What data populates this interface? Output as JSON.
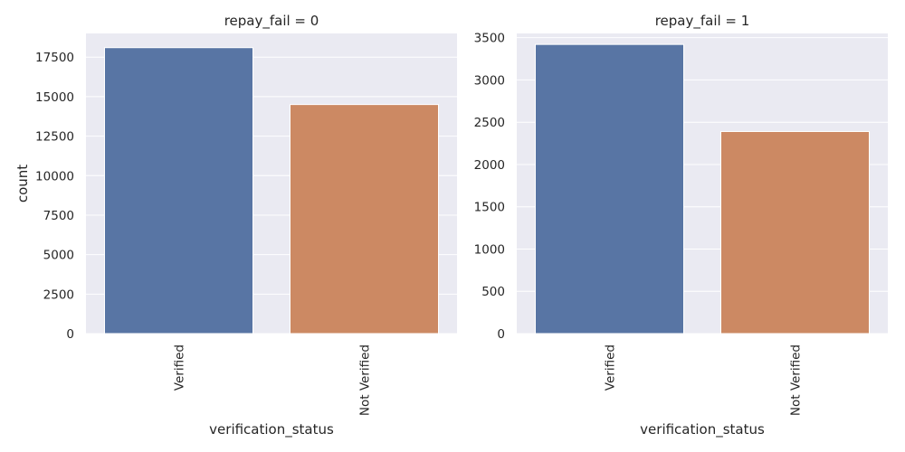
{
  "chart_data": [
    {
      "type": "bar",
      "title": "repay_fail = 0",
      "xlabel": "verification_status",
      "ylabel": "count",
      "categories": [
        "Verified",
        "Not Verified"
      ],
      "values": [
        18100,
        14500
      ],
      "colors": [
        "#5875a4",
        "#cc8963"
      ],
      "yticks": [
        "0",
        "2500",
        "5000",
        "7500",
        "10000",
        "12500",
        "15000",
        "17500"
      ],
      "ylim": [
        0,
        19000
      ],
      "grid": true
    },
    {
      "type": "bar",
      "title": "repay_fail = 1",
      "xlabel": "verification_status",
      "ylabel": "",
      "categories": [
        "Verified",
        "Not Verified"
      ],
      "values": [
        3420,
        2390
      ],
      "colors": [
        "#5875a4",
        "#cc8963"
      ],
      "yticks": [
        "0",
        "500",
        "1000",
        "1500",
        "2000",
        "2500",
        "3000",
        "3500"
      ],
      "ylim": [
        0,
        3550
      ],
      "grid": true
    }
  ],
  "style": {
    "background": "#eaeaf2",
    "grid_color": "#ffffff",
    "text_color": "#262626"
  }
}
